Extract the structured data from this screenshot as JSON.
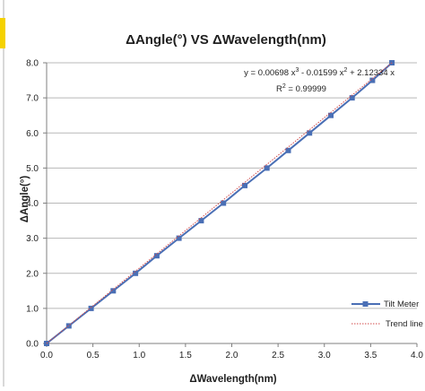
{
  "chart_data": {
    "type": "scatter",
    "title": "ΔAngle(°)  VS  ΔWavelength(nm)",
    "xlabel": "ΔWavelength(nm)",
    "ylabel": "ΔAngle(°)",
    "xlim": [
      0,
      4
    ],
    "ylim": [
      0,
      8
    ],
    "x_ticks": [
      "0.0",
      "0.5",
      "1.0",
      "1.5",
      "2.0",
      "2.5",
      "3.0",
      "3.5",
      "4.0"
    ],
    "y_ticks": [
      "0.0",
      "1.0",
      "2.0",
      "3.0",
      "4.0",
      "5.0",
      "6.0",
      "7.0",
      "8.0"
    ],
    "grid": "horizontal",
    "legend_position": "bottom-right",
    "series": [
      {
        "name": "Tilt Meter",
        "color": "#4a6fb5",
        "marker": "square",
        "x": [
          0.0,
          0.24,
          0.48,
          0.72,
          0.96,
          1.19,
          1.43,
          1.67,
          1.91,
          2.14,
          2.38,
          2.61,
          2.84,
          3.07,
          3.3,
          3.52,
          3.73
        ],
        "y": [
          0.0,
          0.5,
          1.0,
          1.5,
          2.0,
          2.5,
          3.0,
          3.5,
          4.0,
          4.5,
          5.0,
          5.5,
          6.0,
          6.5,
          7.0,
          7.5,
          8.0
        ]
      },
      {
        "name": "Trend line",
        "color": "#d24a4a",
        "style": "dotted",
        "x": [
          0.0,
          3.73
        ],
        "y": [
          0.0,
          8.0
        ]
      }
    ],
    "annotation": {
      "equation_prefix": "y = 0.00698 x",
      "exp1": "3",
      "equation_mid": " - 0.01599 x",
      "exp2": "2",
      "equation_suffix": " + 2.12334 x",
      "r2_prefix": "R",
      "r2_exp": "2",
      "r2_value": " = 0.99999"
    }
  }
}
